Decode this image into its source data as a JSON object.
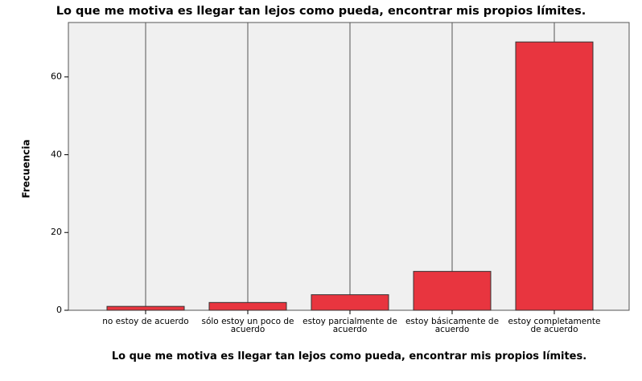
{
  "chart_data": {
    "type": "bar",
    "title": "Lo que me motiva es llegar tan lejos como pueda, encontrar mis propios límites.",
    "x_label": "Lo que me motiva es llegar tan lejos como pueda, encontrar mis propios límites.",
    "y_label": "Frecuencia",
    "categories": [
      "no estoy de acuerdo",
      "sólo estoy un poco de acuerdo",
      "estoy parcialmente de acuerdo",
      "estoy básicamente de acuerdo",
      "estoy completamente de acuerdo"
    ],
    "values": [
      1,
      2,
      4,
      10,
      69
    ],
    "color": "#e8353f",
    "ylim": [
      0,
      74
    ],
    "yticks": [
      0,
      20,
      40,
      60
    ]
  }
}
